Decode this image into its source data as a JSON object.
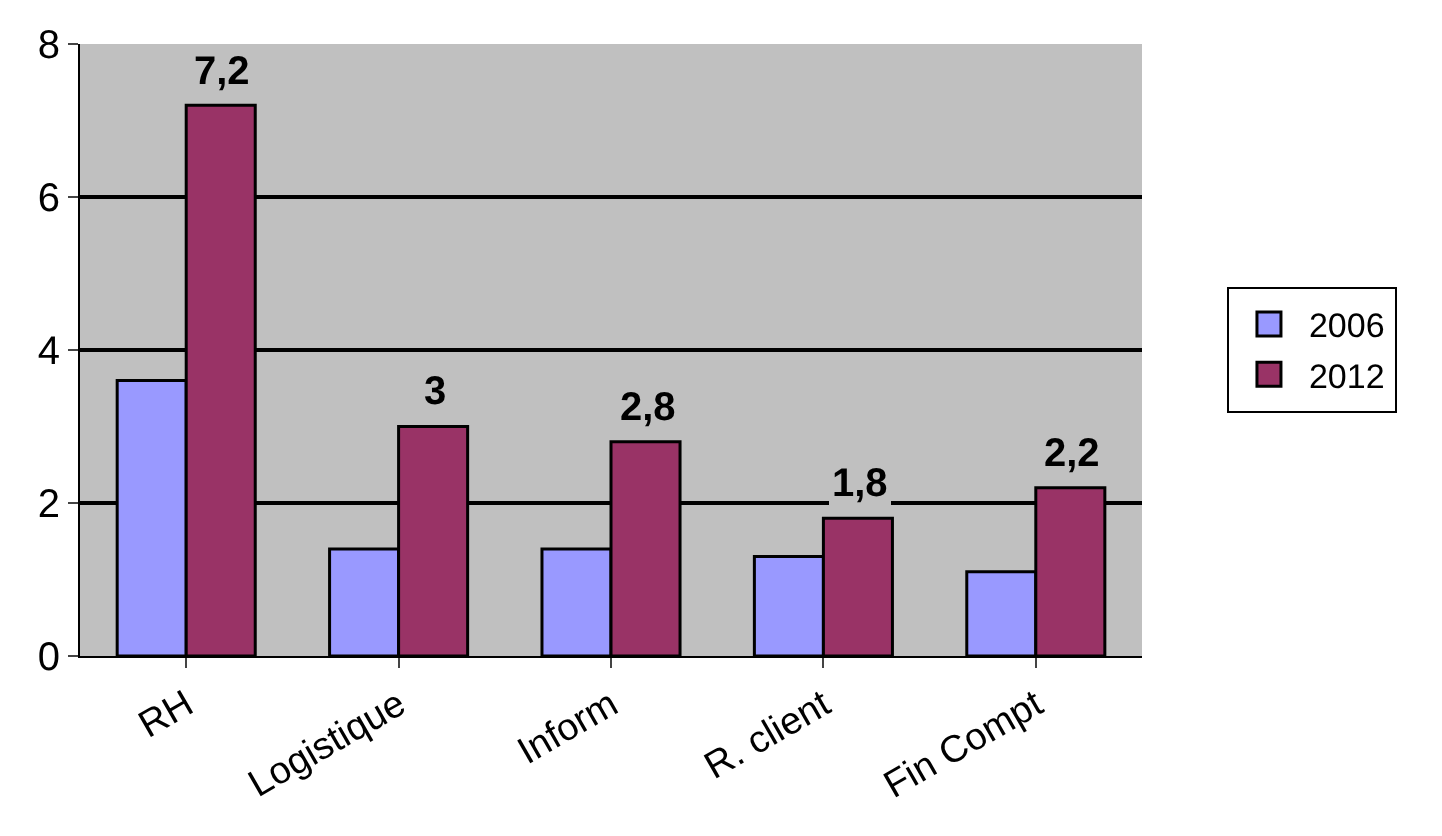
{
  "chart_data": {
    "type": "bar",
    "categories": [
      "RH",
      "Logistique",
      "Inform",
      "R. client",
      "Fin Compt"
    ],
    "series": [
      {
        "name": "2006",
        "color": "#9999ff",
        "values": [
          3.6,
          1.4,
          1.4,
          1.3,
          1.1
        ]
      },
      {
        "name": "2012",
        "color": "#993366",
        "values": [
          7.2,
          3,
          2.8,
          1.8,
          2.2
        ],
        "value_labels": [
          "7,2",
          "3",
          "2,8",
          "1,8",
          "2,2"
        ]
      }
    ],
    "ylim": [
      0,
      8
    ],
    "yticks": [
      0,
      2,
      4,
      6,
      8
    ],
    "grid": "y",
    "legend": "right"
  }
}
